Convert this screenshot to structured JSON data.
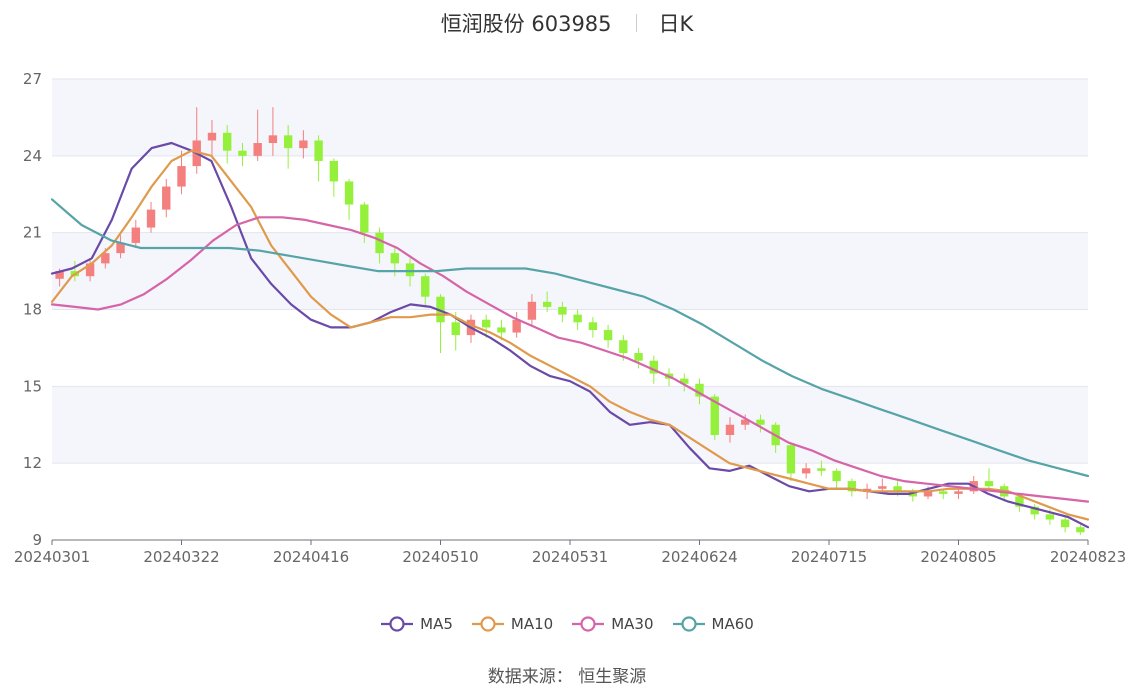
{
  "header": {
    "title": "恒润股份 603985",
    "period": "日K"
  },
  "footer": {
    "source_label": "数据来源：",
    "source": "恒生聚源"
  },
  "chart_data": {
    "type": "candlestick",
    "x_tick_labels": [
      "20240301",
      "20240322",
      "20240416",
      "20240510",
      "20240531",
      "20240624",
      "20240715",
      "20240805",
      "20240823"
    ],
    "ylim": [
      9,
      27
    ],
    "yticks": [
      9,
      12,
      15,
      18,
      21,
      24,
      27
    ],
    "grid": "horizontal",
    "legend_position": "bottom",
    "colors": {
      "up": "#f37f7f",
      "down": "#94f03a",
      "band": "#f5f6fb",
      "grid": "#e3e5ee"
    },
    "series": [
      {
        "name": "MA5",
        "color": "#6a4aa8",
        "values": [
          19.4,
          19.6,
          20.0,
          21.5,
          23.5,
          24.3,
          24.5,
          24.2,
          23.8,
          22.0,
          20.0,
          19.0,
          18.2,
          17.6,
          17.3,
          17.3,
          17.5,
          17.9,
          18.2,
          18.1,
          17.8,
          17.3,
          16.9,
          16.4,
          15.8,
          15.4,
          15.2,
          14.8,
          14.0,
          13.5,
          13.6,
          13.5,
          12.6,
          11.8,
          11.7,
          11.9,
          11.5,
          11.1,
          10.9,
          11.0,
          11.0,
          10.9,
          10.8,
          10.8,
          11.0,
          11.2,
          11.2,
          10.8,
          10.5,
          10.3,
          10.1,
          9.9,
          9.5
        ]
      },
      {
        "name": "MA10",
        "color": "#e09a4c",
        "values": [
          18.3,
          19.3,
          19.8,
          20.5,
          21.6,
          22.8,
          23.8,
          24.2,
          24.0,
          23.0,
          22.0,
          20.5,
          19.5,
          18.5,
          17.8,
          17.3,
          17.5,
          17.7,
          17.7,
          17.8,
          17.8,
          17.4,
          17.1,
          16.7,
          16.2,
          15.8,
          15.4,
          15.0,
          14.4,
          14.0,
          13.7,
          13.5,
          13.0,
          12.5,
          12.0,
          11.8,
          11.6,
          11.4,
          11.2,
          11.0,
          11.0,
          10.9,
          10.9,
          10.9,
          10.9,
          11.0,
          11.0,
          11.0,
          10.9,
          10.6,
          10.3,
          10.0,
          9.8
        ]
      },
      {
        "name": "MA30",
        "color": "#d664a8",
        "values": [
          18.2,
          18.1,
          18.0,
          18.2,
          18.6,
          19.2,
          19.9,
          20.7,
          21.3,
          21.6,
          21.6,
          21.5,
          21.3,
          21.1,
          20.8,
          20.4,
          19.8,
          19.3,
          18.7,
          18.2,
          17.7,
          17.3,
          16.9,
          16.7,
          16.4,
          16.1,
          15.7,
          15.3,
          14.8,
          14.3,
          13.8,
          13.3,
          12.8,
          12.5,
          12.1,
          11.8,
          11.5,
          11.3,
          11.2,
          11.1,
          11.0,
          10.9,
          10.8,
          10.7,
          10.6,
          10.5
        ]
      },
      {
        "name": "MA60",
        "color": "#56a4a8",
        "values": [
          22.3,
          21.3,
          20.7,
          20.4,
          20.4,
          20.4,
          20.4,
          20.3,
          20.1,
          19.9,
          19.7,
          19.5,
          19.5,
          19.5,
          19.6,
          19.6,
          19.6,
          19.4,
          19.1,
          18.8,
          18.5,
          18.0,
          17.4,
          16.7,
          16.0,
          15.4,
          14.9,
          14.5,
          14.1,
          13.7,
          13.3,
          12.9,
          12.5,
          12.1,
          11.8,
          11.5
        ]
      }
    ],
    "candles": [
      [
        19.2,
        19.5,
        18.9,
        19.6
      ],
      [
        19.5,
        19.3,
        19.1,
        19.9
      ],
      [
        19.3,
        19.8,
        19.1,
        20.0
      ],
      [
        19.8,
        20.2,
        19.6,
        20.4
      ],
      [
        20.2,
        20.6,
        20.0,
        20.9
      ],
      [
        20.6,
        21.2,
        20.4,
        21.5
      ],
      [
        21.2,
        21.9,
        21.0,
        22.2
      ],
      [
        21.9,
        22.8,
        21.6,
        23.1
      ],
      [
        22.8,
        23.6,
        22.5,
        24.2
      ],
      [
        23.6,
        24.6,
        23.3,
        25.9
      ],
      [
        24.6,
        24.9,
        23.9,
        25.4
      ],
      [
        24.9,
        24.2,
        23.7,
        25.2
      ],
      [
        24.2,
        24.0,
        23.6,
        24.5
      ],
      [
        24.0,
        24.5,
        23.8,
        25.8
      ],
      [
        24.5,
        24.8,
        24.0,
        25.9
      ],
      [
        24.8,
        24.3,
        23.5,
        25.2
      ],
      [
        24.3,
        24.6,
        23.9,
        25.0
      ],
      [
        24.6,
        23.8,
        23.0,
        24.8
      ],
      [
        23.8,
        23.0,
        22.4,
        23.9
      ],
      [
        23.0,
        22.1,
        21.5,
        23.1
      ],
      [
        22.1,
        21.0,
        20.6,
        22.2
      ],
      [
        21.0,
        20.2,
        19.8,
        21.2
      ],
      [
        20.2,
        19.8,
        19.3,
        20.4
      ],
      [
        19.8,
        19.3,
        18.9,
        20.0
      ],
      [
        19.3,
        18.5,
        18.1,
        19.4
      ],
      [
        18.5,
        17.5,
        16.3,
        18.6
      ],
      [
        17.5,
        17.0,
        16.4,
        17.9
      ],
      [
        17.0,
        17.6,
        16.7,
        17.8
      ],
      [
        17.6,
        17.3,
        16.9,
        17.8
      ],
      [
        17.3,
        17.1,
        16.8,
        17.6
      ],
      [
        17.1,
        17.6,
        16.9,
        17.9
      ],
      [
        17.6,
        18.3,
        17.4,
        18.6
      ],
      [
        18.3,
        18.1,
        17.9,
        18.7
      ],
      [
        18.1,
        17.8,
        17.5,
        18.3
      ],
      [
        17.8,
        17.5,
        17.2,
        18.0
      ],
      [
        17.5,
        17.2,
        16.9,
        17.7
      ],
      [
        17.2,
        16.8,
        16.5,
        17.4
      ],
      [
        16.8,
        16.3,
        16.0,
        17.0
      ],
      [
        16.3,
        16.0,
        15.7,
        16.5
      ],
      [
        16.0,
        15.5,
        15.1,
        16.2
      ],
      [
        15.5,
        15.3,
        15.0,
        15.7
      ],
      [
        15.3,
        15.1,
        14.8,
        15.5
      ],
      [
        15.1,
        14.6,
        14.3,
        15.3
      ],
      [
        14.6,
        13.1,
        12.9,
        14.7
      ],
      [
        13.1,
        13.5,
        12.8,
        13.8
      ],
      [
        13.5,
        13.7,
        13.3,
        13.9
      ],
      [
        13.7,
        13.5,
        13.2,
        13.9
      ],
      [
        13.5,
        12.7,
        12.4,
        13.6
      ],
      [
        12.7,
        11.6,
        11.3,
        12.8
      ],
      [
        11.6,
        11.8,
        11.4,
        12.0
      ],
      [
        11.8,
        11.7,
        11.5,
        12.1
      ],
      [
        11.7,
        11.3,
        11.0,
        11.8
      ],
      [
        11.3,
        10.9,
        10.7,
        11.4
      ],
      [
        10.9,
        11.0,
        10.6,
        11.2
      ],
      [
        11.0,
        11.1,
        10.8,
        11.4
      ],
      [
        11.1,
        10.9,
        10.7,
        11.3
      ],
      [
        10.9,
        10.7,
        10.5,
        11.0
      ],
      [
        10.7,
        10.9,
        10.6,
        11.1
      ],
      [
        10.9,
        10.8,
        10.6,
        11.0
      ],
      [
        10.8,
        10.9,
        10.6,
        11.1
      ],
      [
        10.9,
        11.3,
        10.8,
        11.5
      ],
      [
        11.3,
        11.1,
        10.9,
        11.8
      ],
      [
        11.1,
        10.7,
        10.5,
        11.2
      ],
      [
        10.7,
        10.3,
        10.1,
        10.8
      ],
      [
        10.3,
        10.0,
        9.8,
        10.4
      ],
      [
        10.0,
        9.8,
        9.6,
        10.2
      ],
      [
        9.8,
        9.5,
        9.3,
        9.9
      ],
      [
        9.5,
        9.3,
        9.2,
        9.6
      ]
    ]
  }
}
